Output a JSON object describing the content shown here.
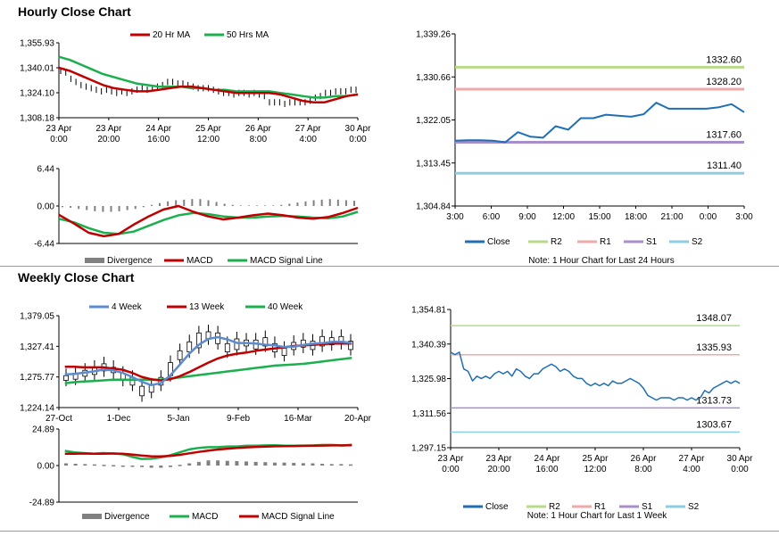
{
  "sections": {
    "hourly_title": "Hourly Close Chart",
    "weekly_title": "Weekly Close Chart"
  },
  "notes": {
    "hourly": "Note: 1 Hour Chart for Last 24 Hours",
    "weekly": "Note: 1 Hour Chart for Last 1 Week"
  },
  "colors": {
    "ma20": "#c00000",
    "ma50": "#1bb04e",
    "ma4": "#5b8bd0",
    "ma13": "#c00000",
    "ma40": "#1bb04e",
    "close": "#1f6fb5",
    "r2": "#b8d98a",
    "r1": "#f0a9a9",
    "s1": "#a98fc9",
    "s2": "#8ccde3",
    "divergence": "#808080",
    "axis": "#000000"
  },
  "chart_data": [
    {
      "id": "hourly_close",
      "type": "line",
      "legend": [
        "20 Hr MA",
        "50 Hrs MA"
      ],
      "yticks": [
        "1,355.93",
        "1,340.01",
        "1,324.10",
        "1,308.18"
      ],
      "ylim": [
        1308.18,
        1355.93
      ],
      "xticks": [
        [
          "23 Apr",
          "0:00"
        ],
        [
          "23 Apr",
          "20:00"
        ],
        [
          "24 Apr",
          "16:00"
        ],
        [
          "25 Apr",
          "12:00"
        ],
        [
          "26 Apr",
          "8:00"
        ],
        [
          "27 Apr",
          "4:00"
        ],
        [
          "30 Apr",
          "0:00"
        ]
      ],
      "price": [
        1338,
        1337,
        1333,
        1331,
        1329,
        1328,
        1327,
        1326,
        1325,
        1326,
        1325,
        1324,
        1325,
        1324,
        1325,
        1326,
        1327,
        1326,
        1327,
        1328,
        1329,
        1331,
        1331,
        1330,
        1330,
        1329,
        1328,
        1327,
        1327,
        1327,
        1326,
        1325,
        1324,
        1324,
        1323,
        1324,
        1324,
        1323,
        1324,
        1323,
        1322,
        1318,
        1318,
        1318,
        1317,
        1318,
        1318,
        1318,
        1318,
        1319,
        1321,
        1322,
        1324,
        1324,
        1325,
        1325,
        1325,
        1326,
        1326
      ],
      "series": [
        {
          "name": "20 Hr MA",
          "values": [
            1340,
            1338,
            1335,
            1332,
            1329,
            1327,
            1326,
            1325,
            1325,
            1326,
            1327,
            1328,
            1328,
            1327,
            1326,
            1325,
            1324,
            1324,
            1324,
            1324,
            1323,
            1321,
            1319,
            1318,
            1318,
            1320,
            1322,
            1323
          ]
        },
        {
          "name": "50 Hrs MA",
          "values": [
            1347,
            1345,
            1342,
            1339,
            1336,
            1334,
            1332,
            1330,
            1329,
            1328,
            1328,
            1328,
            1327,
            1327,
            1326,
            1326,
            1325,
            1325,
            1325,
            1325,
            1324,
            1323,
            1322,
            1321,
            1321,
            1322,
            1322,
            1323
          ]
        }
      ]
    },
    {
      "id": "hourly_macd",
      "type": "line",
      "legend": [
        "Divergence",
        "MACD",
        "MACD Signal Line"
      ],
      "yticks": [
        "6.44",
        "0.00",
        "-6.44"
      ],
      "ylim": [
        -6.44,
        6.44
      ],
      "divergence": [
        -0.2,
        -0.3,
        -0.5,
        -0.7,
        -0.9,
        -1.0,
        -1.0,
        -0.9,
        -0.7,
        -0.5,
        -0.2,
        0.2,
        0.5,
        0.8,
        1.0,
        1.1,
        1.2,
        1.2,
        1.0,
        0.7,
        0.4,
        0.2,
        0.1,
        0.1,
        0.1,
        0.1,
        0.1,
        0.2,
        0.4,
        0.6,
        0.8,
        1.0,
        1.1,
        1.2,
        1.1,
        1.0,
        0.9
      ],
      "series": [
        {
          "name": "MACD",
          "values": [
            -1.5,
            -3.0,
            -4.6,
            -5.2,
            -4.8,
            -3.2,
            -1.8,
            -0.6,
            0.0,
            -1.0,
            -1.8,
            -2.3,
            -2.0,
            -1.6,
            -1.3,
            -1.6,
            -2.0,
            -2.2,
            -1.9,
            -1.2,
            -0.3
          ]
        },
        {
          "name": "MACD Signal Line",
          "values": [
            -2.2,
            -2.8,
            -3.8,
            -4.6,
            -4.8,
            -4.4,
            -3.4,
            -2.4,
            -1.6,
            -1.2,
            -1.4,
            -1.8,
            -2.0,
            -2.0,
            -1.8,
            -1.7,
            -1.8,
            -2.0,
            -2.1,
            -1.8,
            -1.0
          ]
        }
      ]
    },
    {
      "id": "hourly_pivots",
      "type": "line",
      "legend": [
        "Close",
        "R2",
        "R1",
        "S1",
        "S2"
      ],
      "yticks": [
        "1,339.26",
        "1,330.66",
        "1,322.05",
        "1,313.45",
        "1,304.84"
      ],
      "ylim": [
        1304.84,
        1339.26
      ],
      "xticks": [
        "3:00",
        "6:00",
        "9:00",
        "12:00",
        "15:00",
        "18:00",
        "21:00",
        "0:00",
        "3:00"
      ],
      "levels": [
        {
          "name": "R2",
          "value": 1332.6,
          "label": "1332.60"
        },
        {
          "name": "R1",
          "value": 1328.2,
          "label": "1328.20"
        },
        {
          "name": "S1",
          "value": 1317.6,
          "label": "1317.60"
        },
        {
          "name": "S2",
          "value": 1311.4,
          "label": "1311.40"
        }
      ],
      "close": [
        1317.9,
        1318.0,
        1318.0,
        1317.9,
        1317.6,
        1319.6,
        1318.7,
        1318.5,
        1320.8,
        1320.1,
        1322.4,
        1322.4,
        1323.1,
        1322.9,
        1322.7,
        1323.2,
        1325.5,
        1324.3,
        1324.3,
        1324.3,
        1324.3,
        1324.6,
        1325.2,
        1323.6
      ]
    },
    {
      "id": "weekly_close",
      "type": "line",
      "legend": [
        "4 Week",
        "13 Week",
        "40 Week"
      ],
      "yticks": [
        "1,379.05",
        "1,327.41",
        "1,275.77",
        "1,224.14"
      ],
      "ylim": [
        1224.14,
        1379.05
      ],
      "xticks": [
        "27-Oct",
        "1-Dec",
        "5-Jan",
        "9-Feb",
        "16-Mar",
        "20-Apr"
      ],
      "candles": [
        [
          1270,
          1278
        ],
        [
          1272,
          1282
        ],
        [
          1277,
          1287
        ],
        [
          1280,
          1292
        ],
        [
          1286,
          1298
        ],
        [
          1283,
          1292
        ],
        [
          1270,
          1282
        ],
        [
          1262,
          1275
        ],
        [
          1244,
          1260
        ],
        [
          1250,
          1262
        ],
        [
          1262,
          1275
        ],
        [
          1278,
          1300
        ],
        [
          1305,
          1320
        ],
        [
          1318,
          1335
        ],
        [
          1325,
          1350
        ],
        [
          1340,
          1352
        ],
        [
          1332,
          1350
        ],
        [
          1318,
          1332
        ],
        [
          1322,
          1340
        ],
        [
          1328,
          1338
        ],
        [
          1323,
          1338
        ],
        [
          1328,
          1342
        ],
        [
          1318,
          1332
        ],
        [
          1312,
          1324
        ],
        [
          1322,
          1334
        ],
        [
          1326,
          1338
        ],
        [
          1322,
          1336
        ],
        [
          1328,
          1344
        ],
        [
          1330,
          1342
        ],
        [
          1332,
          1344
        ],
        [
          1322,
          1336
        ]
      ],
      "series": [
        {
          "name": "4 Week",
          "values": [
            1280,
            1281,
            1283,
            1285,
            1288,
            1287,
            1283,
            1276,
            1268,
            1262,
            1265,
            1278,
            1296,
            1315,
            1330,
            1340,
            1343,
            1339,
            1333,
            1333,
            1332,
            1330,
            1329,
            1326,
            1327,
            1330,
            1332,
            1333,
            1335,
            1335,
            1333
          ]
        },
        {
          "name": "13 Week",
          "values": [
            1293,
            1293,
            1292,
            1292,
            1292,
            1290,
            1288,
            1283,
            1276,
            1272,
            1270,
            1272,
            1277,
            1284,
            1292,
            1300,
            1307,
            1312,
            1315,
            1317,
            1320,
            1322,
            1324,
            1326,
            1328,
            1329,
            1330,
            1331,
            1332,
            1332,
            1332
          ]
        },
        {
          "name": "40 Week",
          "values": [
            1265,
            1267,
            1268,
            1269,
            1270,
            1271,
            1271,
            1271,
            1271,
            1271,
            1271,
            1273,
            1275,
            1277,
            1279,
            1281,
            1283,
            1285,
            1287,
            1289,
            1291,
            1293,
            1295,
            1296,
            1297,
            1298,
            1300,
            1302,
            1304,
            1306,
            1308
          ]
        }
      ]
    },
    {
      "id": "weekly_macd",
      "type": "line",
      "legend": [
        "Divergence",
        "MACD",
        "MACD Signal Line"
      ],
      "yticks": [
        "24.89",
        "0.00",
        "-24.89"
      ],
      "ylim": [
        -24.89,
        24.89
      ],
      "divergence": [
        1.5,
        1.2,
        1.0,
        0.8,
        0.5,
        0.3,
        0.0,
        -0.5,
        -1.0,
        -1.5,
        -1.5,
        -1.0,
        0.5,
        1.5,
        2.5,
        3.5,
        3.5,
        3.2,
        3.0,
        2.8,
        2.5,
        2.3,
        2.0,
        2.0,
        1.8,
        1.6,
        1.5,
        1.2,
        1.0,
        1.0,
        0.8
      ],
      "series": [
        {
          "name": "MACD",
          "values": [
            10,
            9,
            8.5,
            8,
            8.5,
            8.2,
            7.8,
            6,
            4.5,
            4.6,
            5.5,
            7,
            9,
            11,
            12,
            12.5,
            12.5,
            13,
            13,
            13.5,
            13.5,
            13.7,
            13.8,
            13.5,
            13.5,
            13.6,
            13.7,
            14,
            14,
            13.6,
            14.2
          ]
        },
        {
          "name": "MACD Signal Line",
          "values": [
            8,
            8.1,
            8.2,
            8.1,
            8,
            8.2,
            8,
            7.5,
            6.8,
            6.3,
            6.2,
            6.5,
            7.3,
            8.3,
            9.3,
            10.2,
            10.9,
            11.5,
            12,
            12.4,
            12.7,
            12.9,
            13.1,
            13.2,
            13.3,
            13.4,
            13.5,
            13.6,
            13.7,
            13.7,
            13.8
          ]
        }
      ]
    },
    {
      "id": "weekly_pivots",
      "type": "line",
      "legend": [
        "Close",
        "R2",
        "R1",
        "S1",
        "S2"
      ],
      "yticks": [
        "1,354.81",
        "1,340.39",
        "1,325.98",
        "1,311.56",
        "1,297.15"
      ],
      "ylim": [
        1297.15,
        1354.81
      ],
      "xticks": [
        [
          "23 Apr",
          "0:00"
        ],
        [
          "23 Apr",
          "20:00"
        ],
        [
          "24 Apr",
          "16:00"
        ],
        [
          "25 Apr",
          "12:00"
        ],
        [
          "26 Apr",
          "8:00"
        ],
        [
          "27 Apr",
          "4:00"
        ],
        [
          "30 Apr",
          "0:00"
        ]
      ],
      "levels": [
        {
          "name": "R2",
          "value": 1348.07,
          "label": "1348.07"
        },
        {
          "name": "R1",
          "value": 1335.93,
          "label": "1335.93"
        },
        {
          "name": "S1",
          "value": 1313.73,
          "label": "1313.73"
        },
        {
          "name": "S2",
          "value": 1303.67,
          "label": "1303.67"
        }
      ],
      "close": [
        1337,
        1336,
        1337,
        1330,
        1329,
        1325,
        1327,
        1326,
        1327,
        1326,
        1328,
        1329,
        1328,
        1329,
        1327,
        1330,
        1329,
        1327,
        1326,
        1328,
        1328,
        1330,
        1331,
        1332,
        1331,
        1329,
        1330,
        1329,
        1327,
        1326,
        1326,
        1324,
        1323,
        1324,
        1323,
        1324,
        1323,
        1325,
        1324,
        1324,
        1325,
        1326,
        1325,
        1324,
        1322,
        1319,
        1318,
        1317,
        1318,
        1318,
        1318,
        1317,
        1318,
        1318,
        1317,
        1318,
        1317,
        1318,
        1321,
        1320,
        1322,
        1323,
        1324,
        1325,
        1324,
        1325,
        1324
      ]
    }
  ]
}
